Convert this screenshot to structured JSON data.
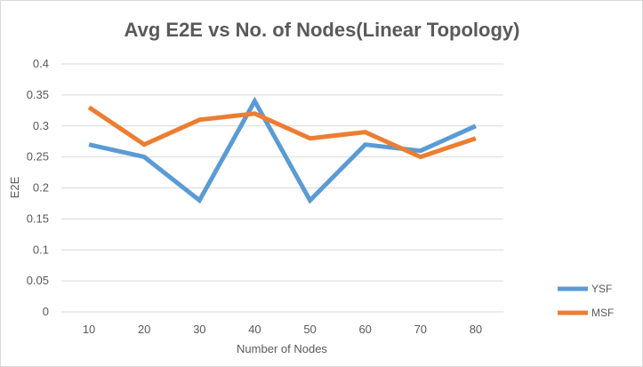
{
  "chart_data": {
    "type": "line",
    "title": "Avg E2E vs No. of Nodes(Linear Topology)",
    "xlabel": "Number of Nodes",
    "ylabel": "E2E",
    "categories": [
      "10",
      "20",
      "30",
      "40",
      "50",
      "60",
      "70",
      "80"
    ],
    "ylim": [
      0,
      0.4
    ],
    "yticks": [
      "0",
      "0.05",
      "0.1",
      "0.15",
      "0.2",
      "0.25",
      "0.3",
      "0.35",
      "0.4"
    ],
    "grid": true,
    "legend_position": "right",
    "series": [
      {
        "name": "YSF",
        "color": "#5b9bd5",
        "values": [
          0.27,
          0.25,
          0.18,
          0.34,
          0.18,
          0.27,
          0.26,
          0.3
        ]
      },
      {
        "name": "MSF",
        "color": "#ed7d31",
        "values": [
          0.33,
          0.27,
          0.31,
          0.32,
          0.28,
          0.29,
          0.25,
          0.28
        ]
      }
    ]
  }
}
